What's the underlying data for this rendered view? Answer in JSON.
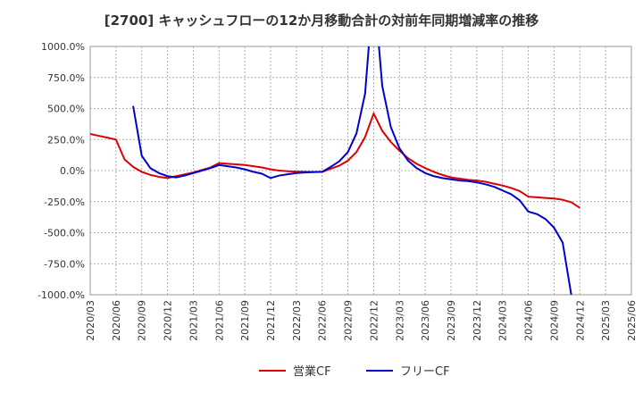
{
  "chart_data": {
    "type": "line",
    "title": "[2700]  キャッシュフローの12か月移動合計の対前年同期増減率の推移",
    "xlabel": "",
    "ylabel": "",
    "ylim": [
      -1000,
      1000
    ],
    "yticks": [
      "1000.0%",
      "750.0%",
      "500.0%",
      "250.0%",
      "0.0%",
      "-250.0%",
      "-500.0%",
      "-750.0%",
      "-1000.0%"
    ],
    "ytick_values": [
      1000,
      750,
      500,
      250,
      0,
      -250,
      -500,
      -750,
      -1000
    ],
    "xticks": [
      "2020/03",
      "2020/06",
      "2020/09",
      "2020/12",
      "2021/03",
      "2021/06",
      "2021/09",
      "2021/12",
      "2022/03",
      "2022/06",
      "2022/09",
      "2022/12",
      "2023/03",
      "2023/06",
      "2023/09",
      "2023/12",
      "2024/03",
      "2024/06",
      "2024/09",
      "2024/12",
      "2025/03",
      "2025/06"
    ],
    "grid": true,
    "legend_position": "bottom",
    "series": [
      {
        "name": "営業CF",
        "color": "#dd0000",
        "x": [
          "2020/03",
          "2020/04",
          "2020/05",
          "2020/06",
          "2020/07",
          "2020/08",
          "2020/09",
          "2020/10",
          "2020/11",
          "2020/12",
          "2021/01",
          "2021/02",
          "2021/03",
          "2021/04",
          "2021/05",
          "2021/06",
          "2021/07",
          "2021/08",
          "2021/09",
          "2021/10",
          "2021/11",
          "2021/12",
          "2022/01",
          "2022/02",
          "2022/03",
          "2022/04",
          "2022/05",
          "2022/06",
          "2022/07",
          "2022/08",
          "2022/09",
          "2022/10",
          "2022/11",
          "2022/12",
          "2023/01",
          "2023/02",
          "2023/03",
          "2023/04",
          "2023/05",
          "2023/06",
          "2023/07",
          "2023/08",
          "2023/09",
          "2023/10",
          "2023/11",
          "2023/12",
          "2024/01",
          "2024/02",
          "2024/03",
          "2024/04",
          "2024/05",
          "2024/06",
          "2024/07",
          "2024/08",
          "2024/09",
          "2024/10",
          "2024/11",
          "2024/12"
        ],
        "values": [
          295,
          280,
          265,
          250,
          90,
          30,
          -10,
          -35,
          -50,
          -60,
          -45,
          -30,
          -15,
          5,
          25,
          60,
          55,
          50,
          45,
          35,
          25,
          10,
          0,
          -5,
          -8,
          -10,
          -12,
          -10,
          15,
          40,
          80,
          150,
          270,
          460,
          320,
          230,
          160,
          100,
          55,
          20,
          -10,
          -35,
          -55,
          -65,
          -75,
          -80,
          -90,
          -105,
          -120,
          -140,
          -165,
          -210,
          -215,
          -220,
          -225,
          -235,
          -255,
          -300
        ]
      },
      {
        "name": "フリーCF",
        "color": "#0000cc",
        "x": [
          "2020/08",
          "2020/09",
          "2020/10",
          "2020/11",
          "2020/12",
          "2021/01",
          "2021/02",
          "2021/03",
          "2021/04",
          "2021/05",
          "2021/06",
          "2021/07",
          "2021/08",
          "2021/09",
          "2021/10",
          "2021/11",
          "2021/12",
          "2022/01",
          "2022/02",
          "2022/03",
          "2022/04",
          "2022/05",
          "2022/06",
          "2022/07",
          "2022/08",
          "2022/09",
          "2022/10",
          "2022/11",
          "2022/12",
          "2023/01",
          "2023/02",
          "2023/03",
          "2023/04",
          "2023/05",
          "2023/06",
          "2023/07",
          "2023/08",
          "2023/09",
          "2023/10",
          "2023/11",
          "2023/12",
          "2024/01",
          "2024/02",
          "2024/03",
          "2024/04",
          "2024/05",
          "2024/06",
          "2024/07",
          "2024/08",
          "2024/09",
          "2024/10",
          "2024/11"
        ],
        "values": [
          520,
          120,
          20,
          -20,
          -45,
          -55,
          -40,
          -20,
          0,
          20,
          45,
          35,
          25,
          10,
          -10,
          -25,
          -60,
          -40,
          -30,
          -20,
          -15,
          -12,
          -10,
          30,
          75,
          150,
          300,
          620,
          1500,
          680,
          350,
          180,
          80,
          20,
          -20,
          -45,
          -60,
          -70,
          -80,
          -85,
          -95,
          -110,
          -130,
          -160,
          -190,
          -240,
          -330,
          -350,
          -390,
          -460,
          -580,
          -1000
        ]
      }
    ]
  }
}
